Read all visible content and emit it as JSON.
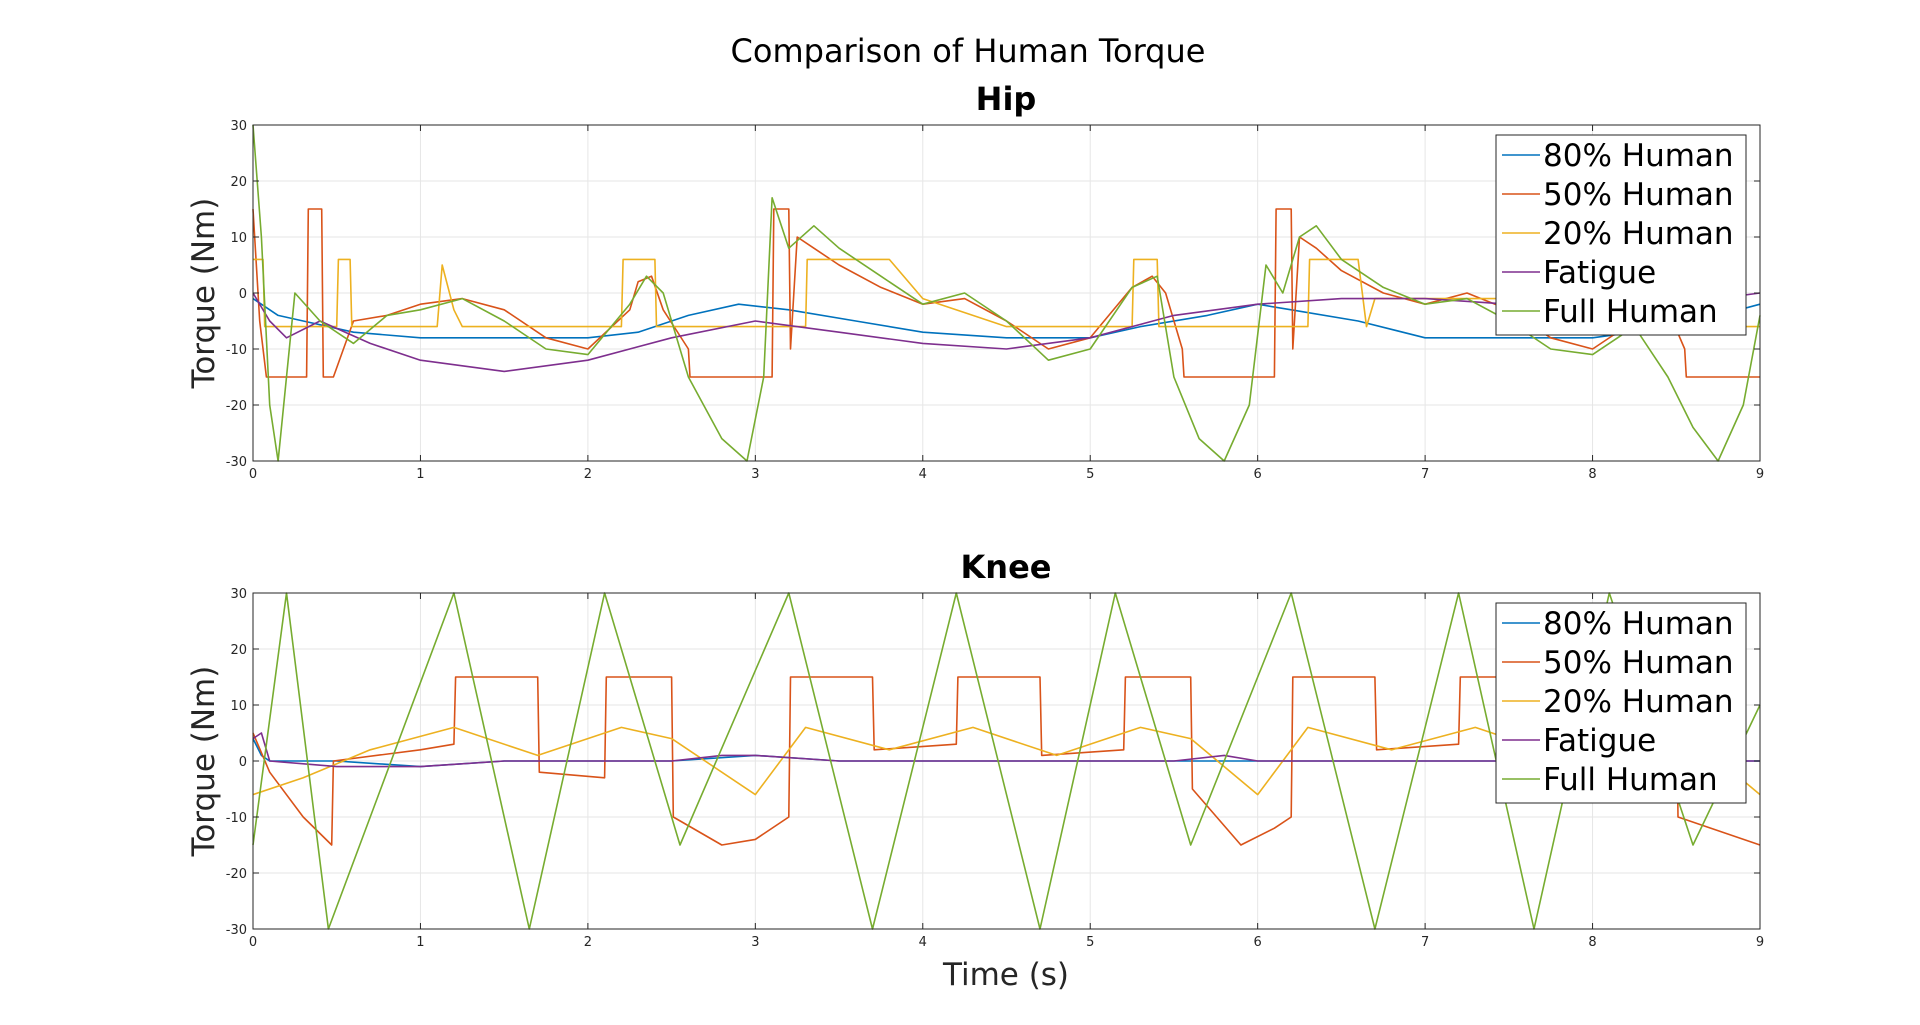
{
  "figure": {
    "title": "Comparison of Human Torque",
    "xlabel": "Time (s)"
  },
  "chart_data": [
    {
      "type": "line",
      "title": "Hip",
      "xlabel": "",
      "ylabel": "Torque (Nm)",
      "xlim": [
        0,
        9
      ],
      "ylim": [
        -30,
        30
      ],
      "xticks": [
        "0",
        "1",
        "2",
        "3",
        "4",
        "5",
        "6",
        "7",
        "8",
        "9"
      ],
      "yticks": [
        "-30",
        "-20",
        "-10",
        "0",
        "10",
        "20",
        "30"
      ],
      "grid": true,
      "legend_position": "top-right",
      "series": [
        {
          "name": "80% Human",
          "color": "#0072BD",
          "x": [
            0,
            0.15,
            0.3,
            0.6,
            1.0,
            1.5,
            2.0,
            2.3,
            2.6,
            2.9,
            3.2,
            3.6,
            4.0,
            4.5,
            5.0,
            5.3,
            5.7,
            6.0,
            6.2,
            6.6,
            7.0,
            7.5,
            8.0,
            8.5,
            9.0
          ],
          "values": [
            -1,
            -4,
            -5,
            -7,
            -8,
            -8,
            -8,
            -7,
            -4,
            -2,
            -3,
            -5,
            -7,
            -8,
            -8,
            -6,
            -4,
            -2,
            -3,
            -5,
            -8,
            -8,
            -8,
            -6,
            -2
          ]
        },
        {
          "name": "50% Human",
          "color": "#D95319",
          "x": [
            0,
            0.04,
            0.08,
            0.32,
            0.33,
            0.41,
            0.42,
            0.48,
            0.6,
            0.8,
            1.0,
            1.25,
            1.5,
            1.75,
            2.0,
            2.25,
            2.3,
            2.38,
            2.45,
            2.6,
            2.61,
            3.1,
            3.11,
            3.2,
            3.21,
            3.25,
            3.35,
            3.5,
            3.75,
            4.0,
            4.25,
            4.5,
            4.75,
            5.0,
            5.25,
            5.37,
            5.45,
            5.55,
            5.56,
            6.1,
            6.11,
            6.2,
            6.21,
            6.25,
            6.35,
            6.5,
            6.75,
            7.0,
            7.25,
            7.5,
            7.75,
            8.0,
            8.25,
            8.45,
            8.55,
            8.56,
            9.0
          ],
          "values": [
            15,
            -5,
            -15,
            -15,
            15,
            15,
            -15,
            -15,
            -5,
            -4,
            -2,
            -1,
            -3,
            -8,
            -10,
            -3,
            2,
            3,
            -3,
            -10,
            -15,
            -15,
            15,
            15,
            -10,
            10,
            8,
            5,
            1,
            -2,
            -1,
            -5,
            -10,
            -8,
            1,
            3,
            0,
            -10,
            -15,
            -15,
            15,
            15,
            -10,
            10,
            8,
            4,
            0,
            -2,
            0,
            -3,
            -8,
            -10,
            -5,
            -3,
            -10,
            -15,
            -15
          ]
        },
        {
          "name": "20% Human",
          "color": "#EDB120",
          "x": [
            0,
            0.02,
            0.06,
            0.07,
            0.5,
            0.51,
            0.58,
            0.59,
            1.1,
            1.13,
            1.2,
            1.25,
            2.2,
            2.21,
            2.4,
            2.41,
            3.3,
            3.31,
            3.8,
            4.0,
            4.5,
            5.0,
            5.25,
            5.26,
            5.4,
            5.41,
            6.3,
            6.31,
            6.6,
            6.65,
            6.7,
            7.5,
            8.0,
            8.5,
            9.0
          ],
          "values": [
            6,
            6,
            6,
            -6,
            -6,
            6,
            6,
            -6,
            -6,
            5,
            -3,
            -6,
            -6,
            6,
            6,
            -6,
            -6,
            6,
            6,
            -1,
            -6,
            -6,
            -6,
            6,
            6,
            -6,
            -6,
            6,
            6,
            -6,
            -1,
            -1,
            -6,
            -6,
            -6
          ]
        },
        {
          "name": "Fatigue",
          "color": "#7E2F8E",
          "x": [
            0,
            0.1,
            0.2,
            0.4,
            0.7,
            1.0,
            1.5,
            2.0,
            2.5,
            3.0,
            3.5,
            4.0,
            4.5,
            5.0,
            5.5,
            6.0,
            6.5,
            7.0,
            7.5,
            8.0,
            8.5,
            9.0
          ],
          "values": [
            0,
            -5,
            -8,
            -5,
            -9,
            -12,
            -14,
            -12,
            -8,
            -5,
            -7,
            -9,
            -10,
            -8,
            -4,
            -2,
            -1,
            -1,
            -2,
            -3,
            -2,
            0
          ]
        },
        {
          "name": "Full Human",
          "color": "#77AC30",
          "x": [
            0,
            0.05,
            0.1,
            0.15,
            0.25,
            0.4,
            0.6,
            0.8,
            1.0,
            1.25,
            1.5,
            1.75,
            2.0,
            2.25,
            2.35,
            2.45,
            2.6,
            2.8,
            2.95,
            3.05,
            3.1,
            3.2,
            3.35,
            3.5,
            3.75,
            4.0,
            4.25,
            4.5,
            4.75,
            5.0,
            5.25,
            5.4,
            5.5,
            5.65,
            5.8,
            5.95,
            6.05,
            6.15,
            6.25,
            6.35,
            6.5,
            6.75,
            7.0,
            7.25,
            7.5,
            7.75,
            8.0,
            8.25,
            8.45,
            8.6,
            8.75,
            8.9,
            9.0
          ],
          "values": [
            30,
            10,
            -20,
            -30,
            0,
            -5,
            -9,
            -4,
            -3,
            -1,
            -5,
            -10,
            -11,
            -2,
            3,
            0,
            -15,
            -26,
            -30,
            -15,
            17,
            8,
            12,
            8,
            3,
            -2,
            0,
            -5,
            -12,
            -10,
            1,
            3,
            -15,
            -26,
            -30,
            -20,
            5,
            0,
            10,
            12,
            6,
            1,
            -2,
            -1,
            -5,
            -10,
            -11,
            -6,
            -15,
            -24,
            -30,
            -20,
            -4
          ]
        }
      ]
    },
    {
      "type": "line",
      "title": "Knee",
      "xlabel": "Time (s)",
      "ylabel": "Torque (Nm)",
      "xlim": [
        0,
        9
      ],
      "ylim": [
        -30,
        30
      ],
      "xticks": [
        "0",
        "1",
        "2",
        "3",
        "4",
        "5",
        "6",
        "7",
        "8",
        "9"
      ],
      "yticks": [
        "-30",
        "-20",
        "-10",
        "0",
        "10",
        "20",
        "30"
      ],
      "grid": true,
      "legend_position": "top-right",
      "series": [
        {
          "name": "80% Human",
          "color": "#0072BD",
          "x": [
            0,
            0.05,
            0.1,
            0.5,
            1.0,
            1.5,
            2.0,
            2.5,
            3.0,
            3.5,
            4.0,
            4.5,
            5.0,
            5.5,
            6.0,
            6.5,
            7.0,
            7.5,
            8.0,
            8.5,
            9.0
          ],
          "values": [
            4,
            1,
            0,
            0,
            -1,
            0,
            0,
            0,
            1,
            0,
            0,
            0,
            0,
            0,
            0,
            0,
            0,
            0,
            0,
            0,
            0
          ]
        },
        {
          "name": "50% Human",
          "color": "#D95319",
          "x": [
            0,
            0.1,
            0.3,
            0.47,
            0.48,
            1.0,
            1.2,
            1.21,
            1.7,
            1.71,
            2.1,
            2.11,
            2.5,
            2.51,
            2.8,
            3.0,
            3.2,
            3.21,
            3.7,
            3.71,
            4.2,
            4.21,
            4.7,
            4.71,
            5.2,
            5.21,
            5.6,
            5.61,
            5.9,
            6.1,
            6.2,
            6.21,
            6.7,
            6.71,
            7.2,
            7.21,
            7.6,
            7.61,
            8.1,
            8.11,
            8.5,
            8.51,
            9.0
          ],
          "values": [
            5,
            -2,
            -10,
            -15,
            0,
            2,
            3,
            15,
            15,
            -2,
            -3,
            15,
            15,
            -10,
            -15,
            -14,
            -10,
            15,
            15,
            2,
            3,
            15,
            15,
            1,
            2,
            15,
            15,
            -5,
            -15,
            -12,
            -10,
            15,
            15,
            2,
            3,
            15,
            15,
            1,
            2,
            15,
            15,
            -10,
            -15
          ]
        },
        {
          "name": "20% Human",
          "color": "#EDB120",
          "x": [
            0,
            0.3,
            0.7,
            1.2,
            1.7,
            2.2,
            2.5,
            3.0,
            3.3,
            3.8,
            4.3,
            4.8,
            5.3,
            5.6,
            6.0,
            6.3,
            6.8,
            7.3,
            7.8,
            8.3,
            8.6,
            9.0
          ],
          "values": [
            -6,
            -3,
            2,
            6,
            1,
            6,
            4,
            -6,
            6,
            2,
            6,
            1,
            6,
            4,
            -6,
            6,
            2,
            6,
            1,
            6,
            4,
            -6
          ]
        },
        {
          "name": "Fatigue",
          "color": "#7E2F8E",
          "x": [
            0,
            0.05,
            0.1,
            0.5,
            1.0,
            1.5,
            2.0,
            2.5,
            2.8,
            3.0,
            3.5,
            4.0,
            4.5,
            5.0,
            5.5,
            5.8,
            6.0,
            6.5,
            7.0,
            7.5,
            8.0,
            8.5,
            9.0
          ],
          "values": [
            4,
            5,
            0,
            -1,
            -1,
            0,
            0,
            0,
            1,
            1,
            0,
            0,
            0,
            0,
            0,
            1,
            0,
            0,
            0,
            0,
            0,
            0,
            0
          ]
        },
        {
          "name": "Full Human",
          "color": "#77AC30",
          "x": [
            0,
            0.2,
            0.45,
            1.2,
            1.65,
            2.1,
            2.55,
            3.2,
            3.7,
            4.2,
            4.7,
            5.15,
            5.6,
            6.2,
            6.7,
            7.2,
            7.65,
            8.1,
            8.6,
            9.0
          ],
          "values": [
            -15,
            30,
            -30,
            30,
            -30,
            30,
            -15,
            30,
            -30,
            30,
            -30,
            30,
            -15,
            30,
            -30,
            30,
            -30,
            30,
            -15,
            10
          ]
        }
      ]
    }
  ]
}
